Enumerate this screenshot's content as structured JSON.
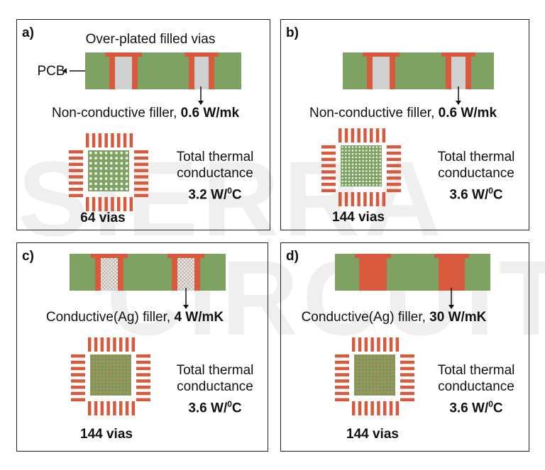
{
  "watermark": {
    "line1": "SIERRA",
    "line2": "CIRCUITS"
  },
  "colors": {
    "pcb": "#7da262",
    "copper": "#d85a3e",
    "filler": "#d0d0d0",
    "outline": "#222222"
  },
  "panels": [
    {
      "id": "a",
      "label": "a)",
      "title": "Over-plated filled vias",
      "pcb_label": "PCB",
      "filler_prefix": "Non-conductive filler, ",
      "filler_value": "0.6 W/mk",
      "filler_type": "non-conductive",
      "conductance_line1": "Total thermal",
      "conductance_line2": "conductance",
      "conductance_value": "3.2 W/",
      "conductance_unit_sup": "0",
      "conductance_unit": "C",
      "vias": "64 vias",
      "via_grid": 8
    },
    {
      "id": "b",
      "label": "b)",
      "filler_prefix": "Non-conductive filler, ",
      "filler_value": "0.6 W/mk",
      "filler_type": "non-conductive",
      "conductance_line1": "Total thermal",
      "conductance_line2": "conductance",
      "conductance_value": "3.6 W/",
      "conductance_unit_sup": "0",
      "conductance_unit": "C",
      "vias": "144 vias",
      "via_grid": 12
    },
    {
      "id": "c",
      "label": "c)",
      "filler_prefix": "Conductive(Ag) filler, ",
      "filler_value": "4 W/mK",
      "filler_type": "conductive-hatched",
      "conductance_line1": "Total thermal",
      "conductance_line2": "conductance",
      "conductance_value": "3.6 W/",
      "conductance_unit_sup": "0",
      "conductance_unit": "C",
      "vias": "144 vias",
      "via_grid": 12
    },
    {
      "id": "d",
      "label": "d)",
      "filler_prefix": "Conductive(Ag) filler, ",
      "filler_value": "30 W/mK",
      "filler_type": "conductive-solid",
      "conductance_line1": "Total thermal",
      "conductance_line2": "conductance",
      "conductance_value": "3.6 W/",
      "conductance_unit_sup": "0",
      "conductance_unit": "C",
      "vias": "144 vias",
      "via_grid": 12
    }
  ]
}
